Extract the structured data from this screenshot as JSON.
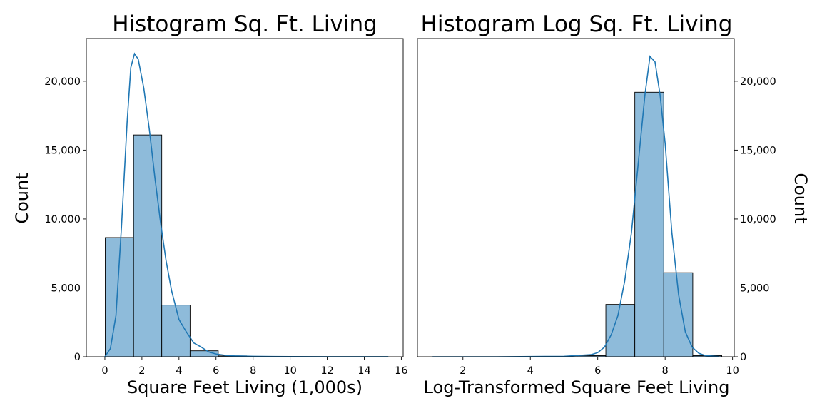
{
  "chart_data": [
    {
      "type": "bar",
      "title": "Histogram Sq. Ft. Living",
      "xlabel": "Square Feet Living (1,000s)",
      "ylabel": "Count",
      "xlim": [
        -1.0,
        16.1
      ],
      "ylim": [
        0,
        23100
      ],
      "x_ticks": [
        0,
        2,
        4,
        6,
        8,
        10,
        12,
        14,
        16
      ],
      "x_tick_labels": [
        "0",
        "2",
        "4",
        "6",
        "8",
        "10",
        "12",
        "14",
        "16"
      ],
      "y_ticks": [
        0,
        5000,
        10000,
        15000,
        20000
      ],
      "y_tick_labels": [
        "0",
        "5,000",
        "10,000",
        "15,000",
        "20,000"
      ],
      "y_axis_side": "left",
      "bin_edges": [
        0.02,
        1.55,
        3.07,
        4.6,
        6.12,
        7.65,
        9.17,
        10.7,
        12.22,
        13.75,
        15.27
      ],
      "values": [
        8650,
        16100,
        3750,
        430,
        60,
        15,
        5,
        2,
        1,
        1
      ],
      "kde": {
        "x": [
          0.0,
          0.3,
          0.6,
          0.9,
          1.2,
          1.4,
          1.6,
          1.8,
          2.1,
          2.4,
          2.7,
          3.0,
          3.3,
          3.6,
          4.0,
          4.4,
          4.8,
          5.2,
          5.6,
          6.0,
          6.5,
          7.0,
          8.0,
          10.0,
          12.0,
          15.3
        ],
        "y": [
          0,
          600,
          3000,
          9500,
          17000,
          21000,
          22000,
          21600,
          19500,
          16500,
          13000,
          9800,
          7000,
          4800,
          2700,
          1800,
          1000,
          700,
          350,
          200,
          100,
          60,
          30,
          10,
          5,
          2
        ]
      },
      "grid": false,
      "legend": "none"
    },
    {
      "type": "bar",
      "title": "Histogram Log Sq. Ft. Living",
      "xlabel": "Log-Transformed Square Feet Living",
      "ylabel": "Count",
      "xlim": [
        0.65,
        10.05
      ],
      "ylim": [
        0,
        23100
      ],
      "x_ticks": [
        2,
        4,
        6,
        8,
        10
      ],
      "x_tick_labels": [
        "2",
        "4",
        "6",
        "8",
        "10"
      ],
      "y_ticks": [
        0,
        5000,
        10000,
        15000,
        20000
      ],
      "y_tick_labels": [
        "0",
        "5,000",
        "10,000",
        "15,000",
        "20,000"
      ],
      "y_axis_side": "right",
      "bin_edges": [
        1.08,
        1.94,
        2.8,
        3.66,
        4.52,
        5.38,
        6.24,
        7.1,
        7.96,
        8.82,
        9.68
      ],
      "values": [
        1,
        1,
        2,
        3,
        5,
        80,
        3800,
        19200,
        6100,
        80
      ],
      "kde": {
        "x": [
          1.1,
          3.0,
          5.0,
          5.8,
          6.0,
          6.2,
          6.4,
          6.6,
          6.8,
          7.0,
          7.2,
          7.4,
          7.55,
          7.7,
          7.85,
          8.0,
          8.2,
          8.4,
          8.6,
          8.8,
          9.0,
          9.2,
          9.6
        ],
        "y": [
          0,
          0,
          30,
          150,
          300,
          700,
          1600,
          3000,
          5500,
          9000,
          14000,
          19000,
          21800,
          21400,
          19000,
          15500,
          9000,
          4500,
          1800,
          700,
          250,
          80,
          10
        ]
      },
      "grid": false,
      "legend": "none"
    }
  ]
}
